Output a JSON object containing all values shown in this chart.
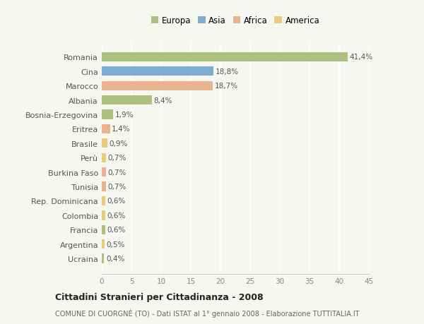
{
  "countries": [
    "Romania",
    "Cina",
    "Marocco",
    "Albania",
    "Bosnia-Erzegovina",
    "Eritrea",
    "Brasile",
    "Perù",
    "Burkina Faso",
    "Tunisia",
    "Rep. Dominicana",
    "Colombia",
    "Francia",
    "Argentina",
    "Ucraina"
  ],
  "values": [
    41.4,
    18.8,
    18.7,
    8.4,
    1.9,
    1.4,
    0.9,
    0.7,
    0.7,
    0.7,
    0.6,
    0.6,
    0.6,
    0.5,
    0.4
  ],
  "labels": [
    "41,4%",
    "18,8%",
    "18,7%",
    "8,4%",
    "1,9%",
    "1,4%",
    "0,9%",
    "0,7%",
    "0,7%",
    "0,7%",
    "0,6%",
    "0,6%",
    "0,6%",
    "0,5%",
    "0,4%"
  ],
  "colors": [
    "#aec07f",
    "#7badd4",
    "#e8b48e",
    "#aec07f",
    "#aec07f",
    "#e8b48e",
    "#e8cc7a",
    "#e8cc7a",
    "#e8b48e",
    "#e8b48e",
    "#e8cc7a",
    "#e8cc7a",
    "#aec07f",
    "#e8cc7a",
    "#aec07f"
  ],
  "legend_labels": [
    "Europa",
    "Asia",
    "Africa",
    "America"
  ],
  "legend_colors": [
    "#aec07f",
    "#7badd4",
    "#e8b48e",
    "#e8cc7a"
  ],
  "title": "Cittadini Stranieri per Cittadinanza - 2008",
  "subtitle": "COMUNE DI CUORGNÈ (TO) - Dati ISTAT al 1° gennaio 2008 - Elaborazione TUTTITALIA.IT",
  "xlim": [
    0,
    45
  ],
  "xticks": [
    0,
    5,
    10,
    15,
    20,
    25,
    30,
    35,
    40,
    45
  ],
  "background_color": "#f7f7f2",
  "grid_color": "#ffffff",
  "bar_height": 0.65
}
